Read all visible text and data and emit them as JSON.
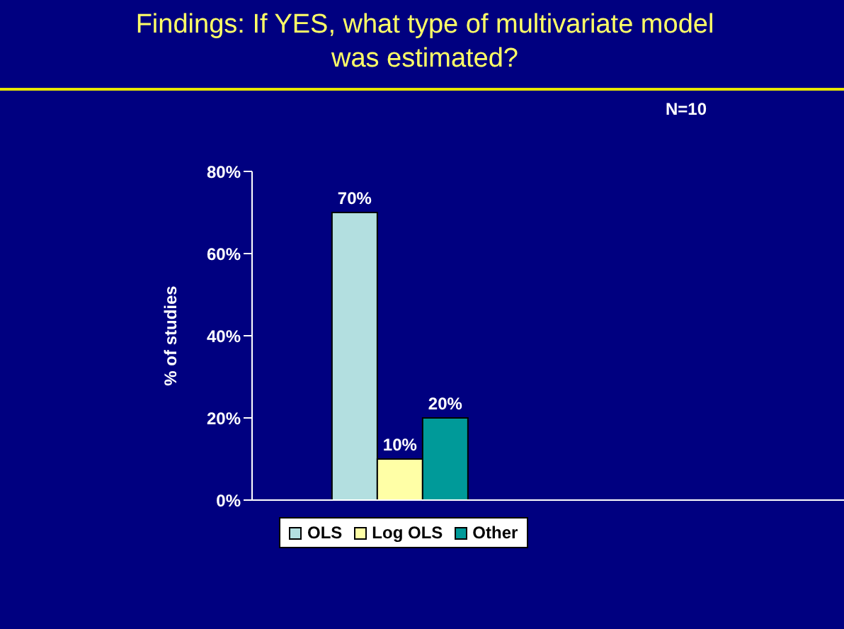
{
  "chart_data": {
    "type": "bar",
    "title": "Findings: If YES, what type of multivariate model was estimated?",
    "ylabel": "% of studies",
    "annotations": [
      "N=10"
    ],
    "categories": [
      null,
      null
    ],
    "series": [
      {
        "name": "OLS",
        "color": "#b3dfe0",
        "values": [
          70,
          null
        ],
        "value_labels": [
          "70%",
          null
        ]
      },
      {
        "name": "Log OLS",
        "color": "#ffffa6",
        "values": [
          10,
          null
        ],
        "value_labels": [
          "10%",
          null
        ]
      },
      {
        "name": "Other",
        "color": "#009a99",
        "values": [
          20,
          null
        ],
        "value_labels": [
          "20%",
          null
        ]
      }
    ],
    "ylim": [
      0,
      80
    ],
    "yticks": [
      {
        "value": 0,
        "label": "0%"
      },
      {
        "value": 20,
        "label": "20%"
      },
      {
        "value": 40,
        "label": "40%"
      },
      {
        "value": 60,
        "label": "60%"
      },
      {
        "value": 80,
        "label": "80%"
      }
    ],
    "grid": false,
    "legend": "bottom"
  }
}
